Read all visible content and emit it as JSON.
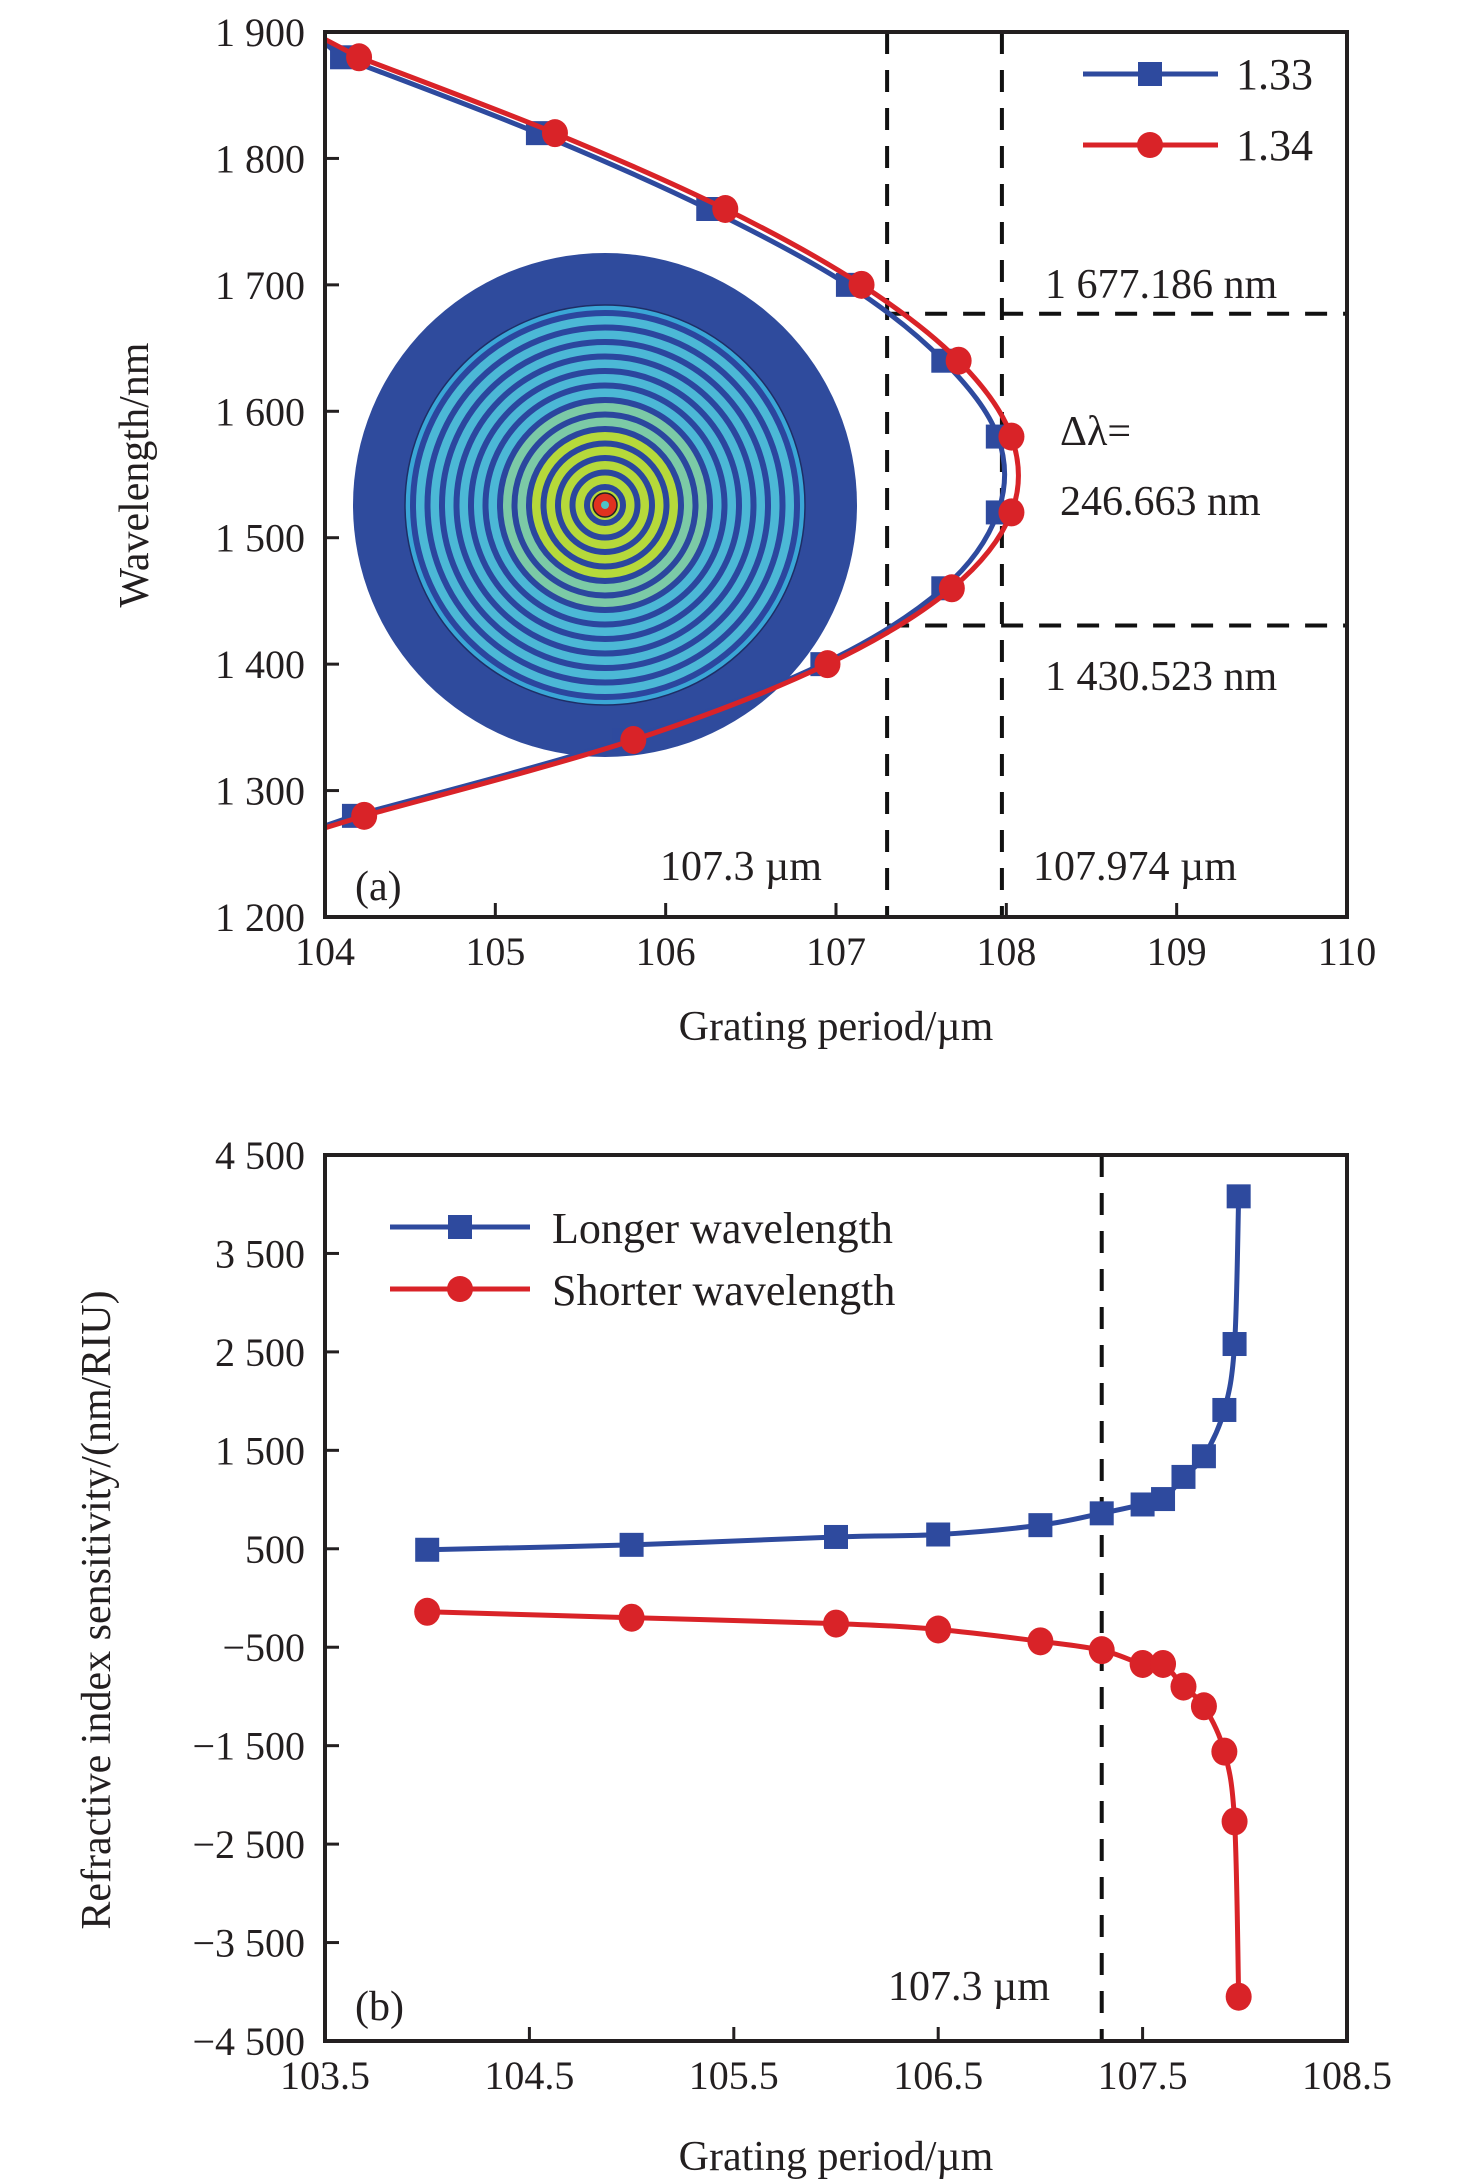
{
  "chart_data": [
    {
      "panel": "(a)",
      "type": "line",
      "xlabel": "Grating period/µm",
      "ylabel": "Wavelength/nm",
      "xlim": [
        104,
        110
      ],
      "ylim": [
        1200,
        1900
      ],
      "xticks": [
        104,
        105,
        106,
        107,
        108,
        109,
        110
      ],
      "xtick_labels": [
        "104",
        "105",
        "106",
        "107",
        "108",
        "109",
        "110"
      ],
      "yticks": [
        1200,
        1300,
        1400,
        1500,
        1600,
        1700,
        1800,
        1900
      ],
      "ytick_labels": [
        "1 200",
        "1 300",
        "1 400",
        "1 500",
        "1 600",
        "1 700",
        "1 800",
        "1 900"
      ],
      "grid": false,
      "legend_position": "top-right",
      "series": [
        {
          "name": "1.33",
          "color": "#2e4a9e",
          "marker": "square",
          "x": [
            104.1,
            105.25,
            106.25,
            107.07,
            107.63,
            107.95,
            107.95,
            107.63,
            106.92,
            105.76,
            104.17
          ],
          "y": [
            1880,
            1820,
            1760,
            1700,
            1640,
            1580,
            1520,
            1460,
            1400,
            1340,
            1280
          ]
        },
        {
          "name": "1.34",
          "color": "#d92328",
          "marker": "circle",
          "x": [
            104.2,
            105.35,
            106.35,
            107.15,
            107.72,
            108.03,
            108.03,
            107.68,
            106.95,
            105.81,
            104.23
          ],
          "y": [
            1880,
            1820,
            1760,
            1700,
            1640,
            1580,
            1520,
            1460,
            1400,
            1340,
            1280
          ]
        }
      ],
      "reference_lines": [
        {
          "orientation": "vertical",
          "value": 107.3,
          "label": "107.3 µm"
        },
        {
          "orientation": "vertical",
          "value": 107.974,
          "label": "107.974 µm"
        },
        {
          "orientation": "horizontal",
          "value": 1677.186,
          "from_x": 107.3,
          "label": "1 677.186 nm"
        },
        {
          "orientation": "horizontal",
          "value": 1430.523,
          "from_x": 107.3,
          "label": "1 430.523 nm"
        }
      ],
      "annotations": [
        "Δλ=",
        "246.663 nm"
      ],
      "inset": "mode field intensity pattern (concentric rings)"
    },
    {
      "panel": "(b)",
      "type": "line",
      "xlabel": "Grating period/µm",
      "ylabel": "Refractive index sensitivity/(nm/RIU)",
      "xlim": [
        103.5,
        108.5
      ],
      "ylim": [
        -4500,
        4500
      ],
      "xticks": [
        103.5,
        104.5,
        105.5,
        106.5,
        107.5,
        108.5
      ],
      "xtick_labels": [
        "103.5",
        "104.5",
        "105.5",
        "106.5",
        "107.5",
        "108.5"
      ],
      "yticks": [
        4500,
        3500,
        2500,
        1500,
        500,
        -500,
        -1500,
        -2500,
        -3500,
        -4500
      ],
      "ytick_labels": [
        "4 500",
        "3 500",
        "2 500",
        "1 500",
        "500",
        "−500",
        "−1 500",
        "−2 500",
        "−3 500",
        "−4 500"
      ],
      "grid": false,
      "legend_position": "top-left",
      "series": [
        {
          "name": "Longer wavelength",
          "color": "#2e4a9e",
          "marker": "square",
          "x": [
            104.0,
            105.0,
            106.0,
            106.5,
            107.0,
            107.3,
            107.5,
            107.6,
            107.7,
            107.8,
            107.9,
            107.95,
            107.97
          ],
          "y": [
            490,
            540,
            620,
            645,
            740,
            860,
            950,
            1005,
            1230,
            1440,
            1910,
            2580,
            4080
          ]
        },
        {
          "name": "Shorter wavelength",
          "color": "#d92328",
          "marker": "circle",
          "x": [
            104.0,
            105.0,
            106.0,
            106.5,
            107.0,
            107.3,
            107.5,
            107.6,
            107.7,
            107.8,
            107.9,
            107.95,
            107.97
          ],
          "y": [
            -140,
            -200,
            -260,
            -320,
            -440,
            -530,
            -670,
            -670,
            -900,
            -1100,
            -1560,
            -2270,
            -4050
          ]
        }
      ],
      "reference_lines": [
        {
          "orientation": "vertical",
          "value": 107.3,
          "label": "107.3 µm"
        }
      ]
    }
  ],
  "labels": {
    "a": {
      "panel_tag": "(a)",
      "xlabel": "Grating period/µm",
      "ylabel": "Wavelength/nm",
      "vline1": "107.3 µm",
      "vline2": "107.974 µm",
      "hline_top": "1 677.186 nm",
      "hline_bottom": "1 430.523 nm",
      "delta_1": "Δλ=",
      "delta_2": "246.663 nm",
      "legend": [
        "1.33",
        "1.34"
      ]
    },
    "b": {
      "panel_tag": "(b)",
      "xlabel": "Grating period/µm",
      "ylabel": "Refractive index sensitivity/(nm/RIU)",
      "vline": "107.3 µm",
      "legend": [
        "Longer wavelength",
        "Shorter wavelength"
      ]
    }
  }
}
